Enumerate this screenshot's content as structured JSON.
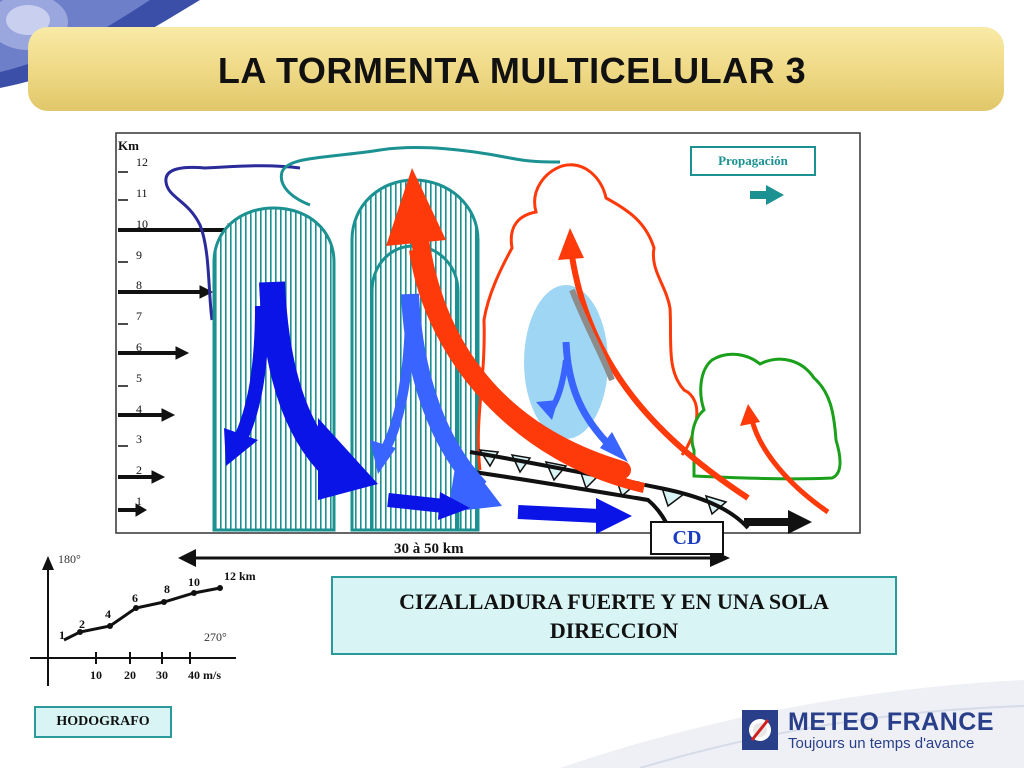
{
  "title": "LA TORMENTA MULTICELULAR 3",
  "diagram": {
    "altitude_unit": "Km",
    "altitude_ticks": [
      "12",
      "11",
      "10",
      "9",
      "8",
      "7",
      "6",
      "5",
      "4",
      "3",
      "2",
      "1"
    ],
    "propagation_label": "Propagación",
    "gust_front_label": "CD",
    "distance_label": "30 à 50 km"
  },
  "shear_note": "CIZALLADURA FUERTE Y EN UNA SOLA DIRECCION",
  "hodograph": {
    "label": "HODOGRAFO",
    "direction_180": "180°",
    "direction_270": "270°",
    "speed_ticks": [
      "10",
      "20",
      "30",
      "40 m/s"
    ],
    "height_labels": [
      "1",
      "2",
      "4",
      "6",
      "8",
      "10",
      "12 km"
    ]
  },
  "logo": {
    "name": "METEO FRANCE",
    "tagline": "Toujours un temps d'avance"
  },
  "colors": {
    "title_band": "#eed884",
    "cell_teal": "#1b9191",
    "downdraft_blue": "#0a14e6",
    "updraft_red": "#ff3a0a",
    "young_cell_green": "#1aa01a",
    "note_fill": "#d8f4f4",
    "brand_blue": "#2a3f8a"
  }
}
